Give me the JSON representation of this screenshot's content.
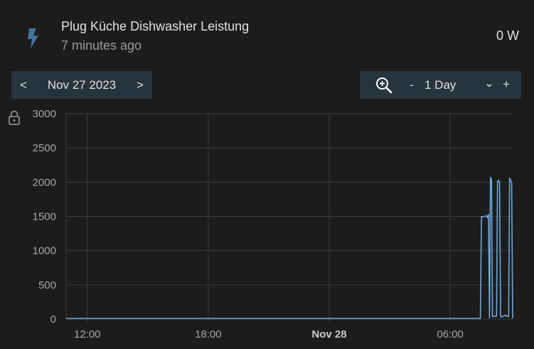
{
  "header": {
    "entity_name": "Plug Küche Dishwasher Leistung",
    "last_changed": "7 minutes ago",
    "state": "0 W",
    "icon": "flash-icon"
  },
  "date_nav": {
    "prev_label": "<",
    "date_label": "Nov 27 2023",
    "next_label": ">"
  },
  "range": {
    "zoom_icon": "zoom-in-icon",
    "minus_label": "-",
    "value": "1 Day",
    "plus_label": "+"
  },
  "colors": {
    "background": "#1c1c1c",
    "control_bg": "#26343d",
    "series": "#6ea8dc",
    "grid": "#3b3b3b"
  },
  "chart_data": {
    "type": "line",
    "y_ticks": [
      "3000",
      "2500",
      "2000",
      "1500",
      "1000",
      "500",
      "0"
    ],
    "x_ticks": [
      {
        "label": "12:00",
        "h": 12,
        "bold": false
      },
      {
        "label": "18:00",
        "h": 18,
        "bold": false
      },
      {
        "label": "Nov 28",
        "h": 24,
        "bold": true
      },
      {
        "label": "06:00",
        "h": 30,
        "bold": false
      }
    ],
    "ylim": [
      0,
      3000
    ],
    "xlim_hours": [
      10.95,
      33.1
    ],
    "grid": true,
    "series": [
      {
        "x": [
          10.95,
          31.5,
          31.55,
          31.6,
          31.8,
          31.85,
          31.9,
          31.95,
          32.0,
          32.05,
          32.1,
          32.3,
          32.35,
          32.4,
          32.45,
          32.5,
          32.55,
          32.6,
          32.75,
          32.8,
          32.9,
          32.95,
          33.0,
          33.05,
          33.1
        ],
        "y": [
          10,
          10,
          1500,
          1490,
          1510,
          1480,
          1530,
          20,
          2070,
          2040,
          40,
          40,
          2010,
          2030,
          1990,
          40,
          30,
          40,
          60,
          40,
          40,
          2060,
          2030,
          1990,
          10
        ]
      }
    ]
  }
}
